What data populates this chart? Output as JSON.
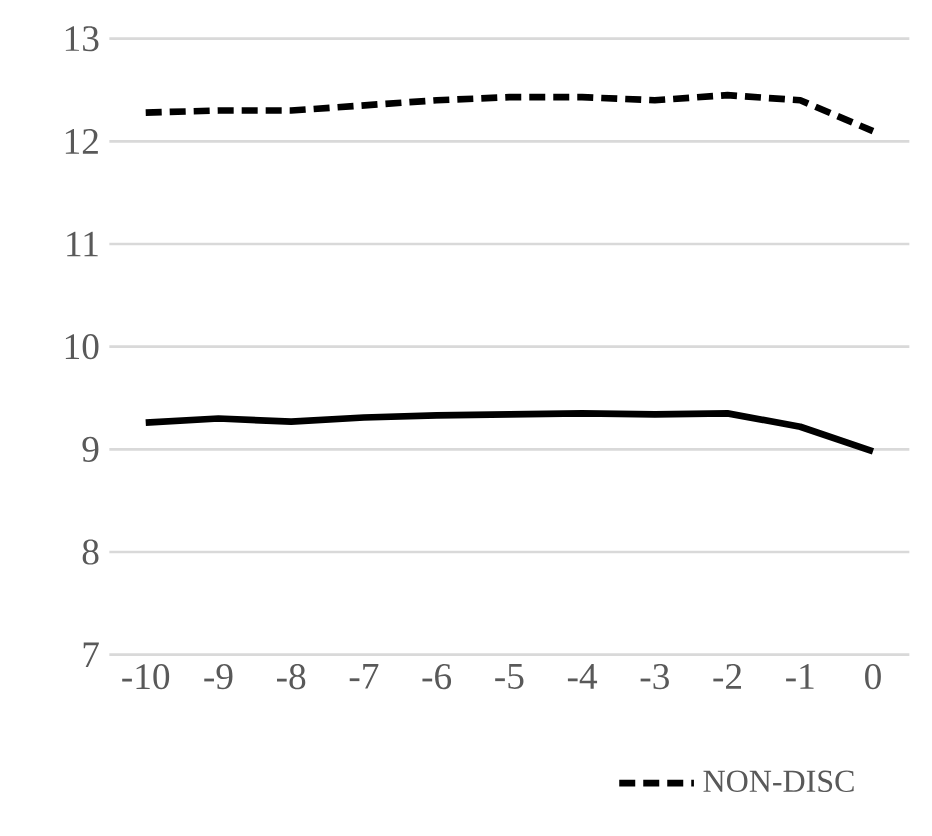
{
  "chart_data": {
    "type": "line",
    "categories": [
      "-10",
      "-9",
      "-8",
      "-7",
      "-6",
      "-5",
      "-4",
      "-3",
      "-2",
      "-1",
      "0"
    ],
    "series": [
      {
        "name": "NON-DISC",
        "color": "#000000",
        "line_style": "dashed",
        "values": [
          12.28,
          12.3,
          12.3,
          12.35,
          12.4,
          12.43,
          12.43,
          12.4,
          12.45,
          12.4,
          12.1
        ]
      },
      {
        "color": "#000000",
        "line_style": "solid",
        "values": [
          9.26,
          9.3,
          9.27,
          9.31,
          9.33,
          9.34,
          9.35,
          9.34,
          9.35,
          9.22,
          8.98
        ]
      }
    ],
    "ylim": [
      7,
      13
    ],
    "yticks": [
      7,
      8,
      9,
      10,
      11,
      12,
      13
    ],
    "grid": "y",
    "legend": "bottom",
    "marker": "none"
  }
}
